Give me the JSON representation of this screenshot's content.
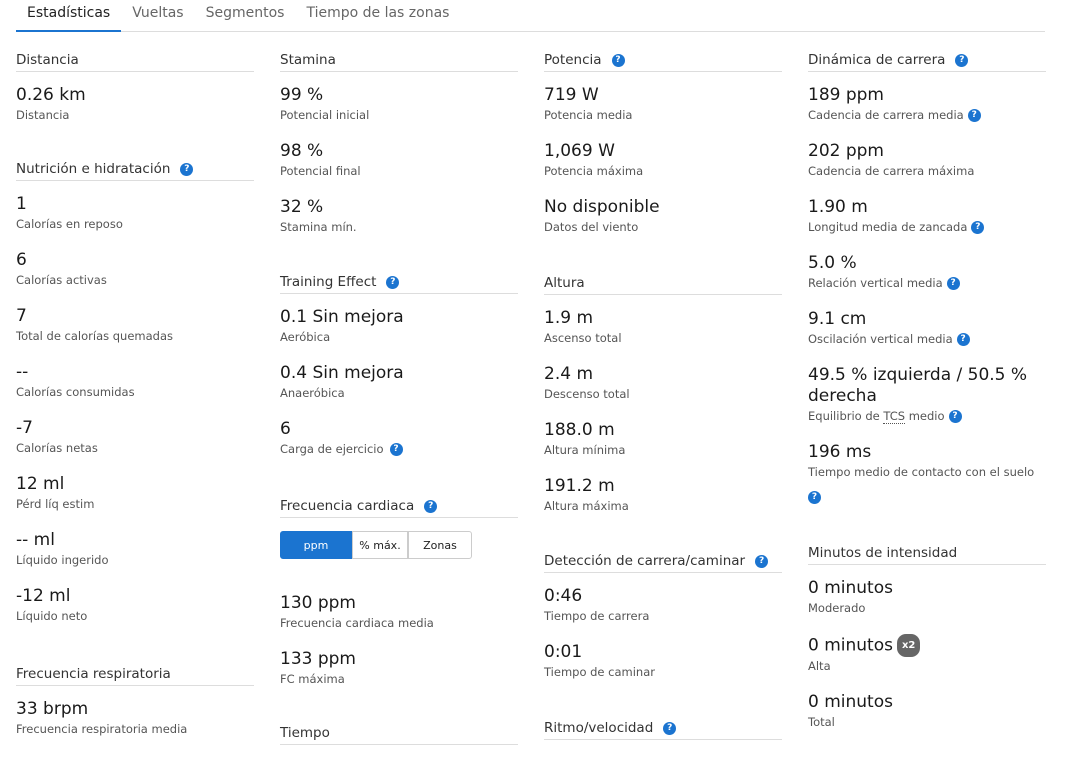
{
  "tabs": [
    "Estadísticas",
    "Vueltas",
    "Segmentos",
    "Tiempo de las zonas"
  ],
  "accent": "#1b74d0",
  "distancia": {
    "title": "Distancia",
    "items": [
      {
        "value": "0.26 km",
        "label": "Distancia"
      }
    ]
  },
  "nutricion": {
    "title": "Nutrición e hidratación",
    "items": [
      {
        "value": "1",
        "label": "Calorías en reposo"
      },
      {
        "value": "6",
        "label": "Calorías activas"
      },
      {
        "value": "7",
        "label": "Total de calorías quemadas"
      },
      {
        "value": "--",
        "label": "Calorías consumidas"
      },
      {
        "value": "-7",
        "label": "Calorías netas"
      },
      {
        "value": "12 ml",
        "label": "Pérd líq estim"
      },
      {
        "value": "-- ml",
        "label": "Líquido ingerido"
      },
      {
        "value": "-12 ml",
        "label": "Líquido neto"
      }
    ]
  },
  "respiratoria": {
    "title": "Frecuencia respiratoria",
    "items": [
      {
        "value": "33 brpm",
        "label": "Frecuencia respiratoria media"
      }
    ]
  },
  "stamina": {
    "title": "Stamina",
    "items": [
      {
        "value": "99 %",
        "label": "Potencial inicial"
      },
      {
        "value": "98 %",
        "label": "Potencial final"
      },
      {
        "value": "32 %",
        "label": "Stamina mín."
      }
    ]
  },
  "training": {
    "title": "Training Effect",
    "items": [
      {
        "value": "0.1 Sin mejora",
        "label": "Aeróbica"
      },
      {
        "value": "0.4 Sin mejora",
        "label": "Anaeróbica"
      },
      {
        "value": "6",
        "label": "Carga de ejercicio"
      }
    ]
  },
  "cardiaca": {
    "title": "Frecuencia cardiaca",
    "buttons": [
      "ppm",
      "% máx.",
      "Zonas"
    ],
    "selected": "ppm",
    "items": [
      {
        "value": "130 ppm",
        "label": "Frecuencia cardiaca media"
      },
      {
        "value": "133 ppm",
        "label": "FC máxima"
      }
    ]
  },
  "tiempo": {
    "title": "Tiempo"
  },
  "potencia": {
    "title": "Potencia",
    "items": [
      {
        "value": "719 W",
        "label": "Potencia media"
      },
      {
        "value": "1,069 W",
        "label": "Potencia máxima"
      },
      {
        "value": "No disponible",
        "label": "Datos del viento"
      }
    ]
  },
  "altura": {
    "title": "Altura",
    "items": [
      {
        "value": "1.9 m",
        "label": "Ascenso total"
      },
      {
        "value": "2.4 m",
        "label": "Descenso total"
      },
      {
        "value": "188.0 m",
        "label": "Altura mínima"
      },
      {
        "value": "191.2 m",
        "label": "Altura máxima"
      }
    ]
  },
  "deteccion": {
    "title": "Detección de carrera/caminar",
    "items": [
      {
        "value": "0:46",
        "label": "Tiempo de carrera"
      },
      {
        "value": "0:01",
        "label": "Tiempo de caminar"
      }
    ]
  },
  "ritmo": {
    "title": "Ritmo/velocidad"
  },
  "dinamica": {
    "title": "Dinámica de carrera",
    "items": [
      {
        "value": "189 ppm",
        "label": "Cadencia de carrera media"
      },
      {
        "value": "202 ppm",
        "label": "Cadencia de carrera máxima"
      },
      {
        "value": "1.90 m",
        "label": "Longitud media de zancada"
      },
      {
        "value": "5.0 %",
        "label": "Relación vertical media"
      },
      {
        "value": "9.1 cm",
        "label": "Oscilación vertical media"
      },
      {
        "value": "49.5 % izquierda / 50.5 % derecha",
        "label_pre": "Equilibrio de ",
        "label_abbr": "TCS",
        "label_post": " medio"
      },
      {
        "value": "196 ms",
        "label": "Tiempo medio de contacto con el suelo"
      }
    ]
  },
  "intensidad": {
    "title": "Minutos de intensidad",
    "badge": "x2",
    "items": [
      {
        "value": "0 minutos",
        "label": "Moderado"
      },
      {
        "value": "0 minutos",
        "label": "Alta"
      },
      {
        "value": "0 minutos",
        "label": "Total"
      }
    ]
  }
}
